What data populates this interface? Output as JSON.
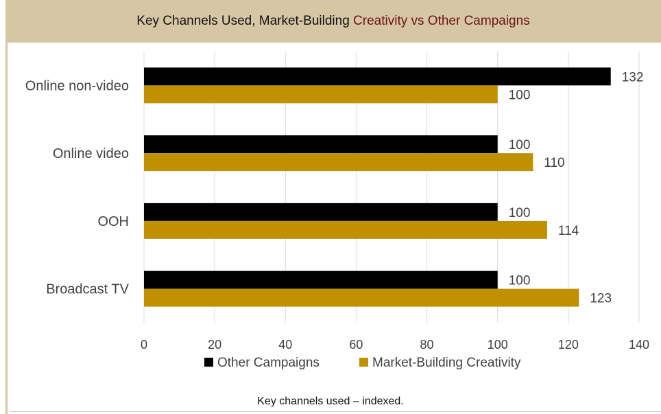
{
  "title": {
    "part1": "Key Channels Used, Market-Building ",
    "part2": "Creativity vs Other Campaigns"
  },
  "caption": "Key channels used – indexed.",
  "colors": {
    "other": "#000000",
    "market": "#bf9000",
    "grid": "#d9d9d9",
    "title_band": "#d6c6a4",
    "title_accent": "#6b1414"
  },
  "chart_data": {
    "type": "bar",
    "orientation": "horizontal",
    "categories": [
      "Online non-video",
      "Online video ",
      "OOH",
      "Broadcast TV"
    ],
    "series": [
      {
        "name": "Other Campaigns",
        "values": [
          132,
          100,
          100,
          100
        ]
      },
      {
        "name": "Market-Building Creativity",
        "values": [
          100,
          110,
          114,
          123
        ]
      }
    ],
    "xlim": [
      0,
      140
    ],
    "xticks": [
      "0",
      "20",
      "40",
      "60",
      "80",
      "100",
      "120",
      "140"
    ],
    "grid": true,
    "legend": "bottom"
  }
}
